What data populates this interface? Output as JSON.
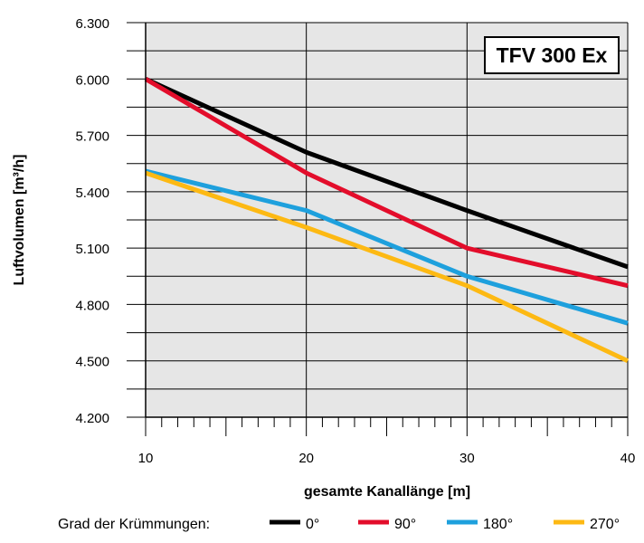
{
  "chart_data": {
    "type": "line",
    "badge": "TFV 300 Ex",
    "xlabel": "gesamte Kanallänge [m]",
    "ylabel": "Luftvolumen [m³/h]",
    "xlim": [
      10,
      40
    ],
    "ylim": [
      4200,
      6300
    ],
    "x_ticks": [
      10,
      20,
      30,
      40
    ],
    "x_tick_labels": [
      "10",
      "20",
      "30",
      "40"
    ],
    "y_ticks": [
      4200,
      4500,
      4800,
      5100,
      5400,
      5700,
      6000,
      6300
    ],
    "y_tick_labels": [
      "4.200",
      "4.500",
      "4.800",
      "5.100",
      "5.400",
      "5.700",
      "6.000",
      "6.300"
    ],
    "grid": true,
    "legend_title": "Grad der Krümmungen:",
    "legend_position": "bottom",
    "x": [
      10,
      20,
      30,
      40
    ],
    "series": [
      {
        "name": "0°",
        "color": "#000000",
        "values": [
          6000,
          5610,
          5300,
          5000
        ]
      },
      {
        "name": "90°",
        "color": "#e30d2b",
        "values": [
          6000,
          5500,
          5100,
          4900
        ]
      },
      {
        "name": "180°",
        "color": "#1ea0dd",
        "values": [
          5510,
          5300,
          4950,
          4700
        ]
      },
      {
        "name": "270°",
        "color": "#fdb913",
        "values": [
          5500,
          5210,
          4900,
          4500
        ]
      }
    ]
  }
}
